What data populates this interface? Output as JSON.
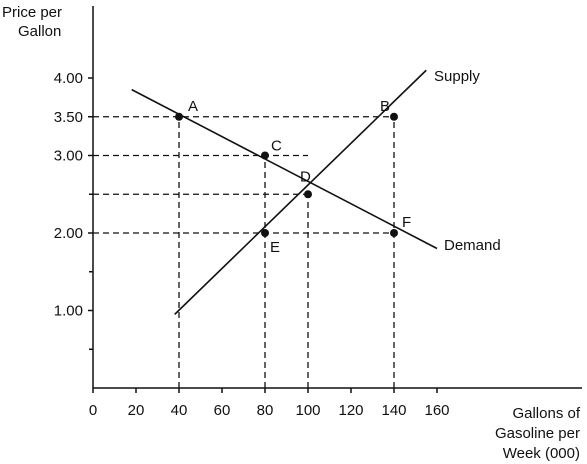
{
  "chart_data": {
    "type": "line",
    "ylabel_lines": [
      "Price per",
      "Gallon"
    ],
    "xlabel_lines": [
      "Gallons of",
      "Gasoline per",
      "Week (000)"
    ],
    "x_ticks": [
      {
        "value": 0,
        "label": "0"
      },
      {
        "value": 20,
        "label": "20"
      },
      {
        "value": 40,
        "label": "40"
      },
      {
        "value": 60,
        "label": "60"
      },
      {
        "value": 80,
        "label": "80"
      },
      {
        "value": 100,
        "label": "100"
      },
      {
        "value": 120,
        "label": "120"
      },
      {
        "value": 140,
        "label": "140"
      },
      {
        "value": 160,
        "label": "160"
      }
    ],
    "y_ticks": [
      {
        "value": 1.0,
        "label": "1.00"
      },
      {
        "value": 2.0,
        "label": "2.00"
      },
      {
        "value": 3.0,
        "label": "3.00"
      },
      {
        "value": 3.5,
        "label": "3.50"
      },
      {
        "value": 4.0,
        "label": "4.00"
      }
    ],
    "y_minor_ticks": [
      0.5,
      1.5,
      2.5
    ],
    "xlim": [
      0,
      200
    ],
    "ylim": [
      0,
      4.8
    ],
    "series": [
      {
        "name": "Supply",
        "x": [
          38,
          155
        ],
        "y": [
          0.95,
          4.1
        ]
      },
      {
        "name": "Demand",
        "x": [
          18,
          160
        ],
        "y": [
          3.85,
          1.8
        ]
      }
    ],
    "points": [
      {
        "label": "A",
        "x": 40,
        "y": 3.5
      },
      {
        "label": "B",
        "x": 140,
        "y": 3.5
      },
      {
        "label": "C",
        "x": 80,
        "y": 3.0
      },
      {
        "label": "D",
        "x": 100,
        "y": 2.5
      },
      {
        "label": "E",
        "x": 80,
        "y": 2.0
      },
      {
        "label": "F",
        "x": 140,
        "y": 2.0
      }
    ],
    "guides": [
      {
        "from": [
          0,
          3.5
        ],
        "to": [
          140,
          3.5
        ]
      },
      {
        "from": [
          0,
          3.0
        ],
        "to": [
          100,
          3.0
        ]
      },
      {
        "from": [
          0,
          2.5
        ],
        "to": [
          100,
          2.5
        ]
      },
      {
        "from": [
          0,
          2.0
        ],
        "to": [
          140,
          2.0
        ]
      },
      {
        "from": [
          40,
          0
        ],
        "to": [
          40,
          3.5
        ]
      },
      {
        "from": [
          80,
          0
        ],
        "to": [
          80,
          3.0
        ]
      },
      {
        "from": [
          100,
          0
        ],
        "to": [
          100,
          2.5
        ]
      },
      {
        "from": [
          140,
          0
        ],
        "to": [
          140,
          3.5
        ]
      }
    ],
    "grid": false,
    "legend": "none"
  }
}
